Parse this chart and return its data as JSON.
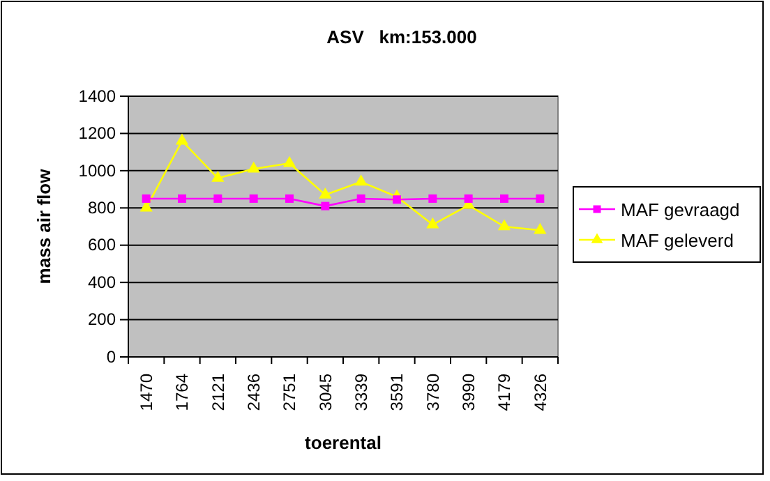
{
  "chart_data": {
    "type": "line",
    "title": "ASV   km:153.000",
    "xlabel": "toerental",
    "ylabel": "mass air flow",
    "categories": [
      "1470",
      "1764",
      "2121",
      "2436",
      "2751",
      "3045",
      "3339",
      "3591",
      "3780",
      "3990",
      "4179",
      "4326"
    ],
    "series": [
      {
        "name": "MAF gevraagd",
        "color": "#ff00ff",
        "marker": "square",
        "values": [
          850,
          850,
          850,
          850,
          850,
          810,
          850,
          845,
          850,
          850,
          850,
          850
        ]
      },
      {
        "name": "MAF geleverd",
        "color": "#ffff00",
        "marker": "triangle",
        "values": [
          800,
          1160,
          960,
          1010,
          1040,
          870,
          940,
          860,
          710,
          815,
          700,
          680
        ]
      }
    ],
    "ylim": [
      0,
      1400
    ],
    "yticks": [
      0,
      200,
      400,
      600,
      800,
      1000,
      1200,
      1400
    ],
    "grid": "y",
    "legend": "right",
    "line_style": "solid"
  }
}
